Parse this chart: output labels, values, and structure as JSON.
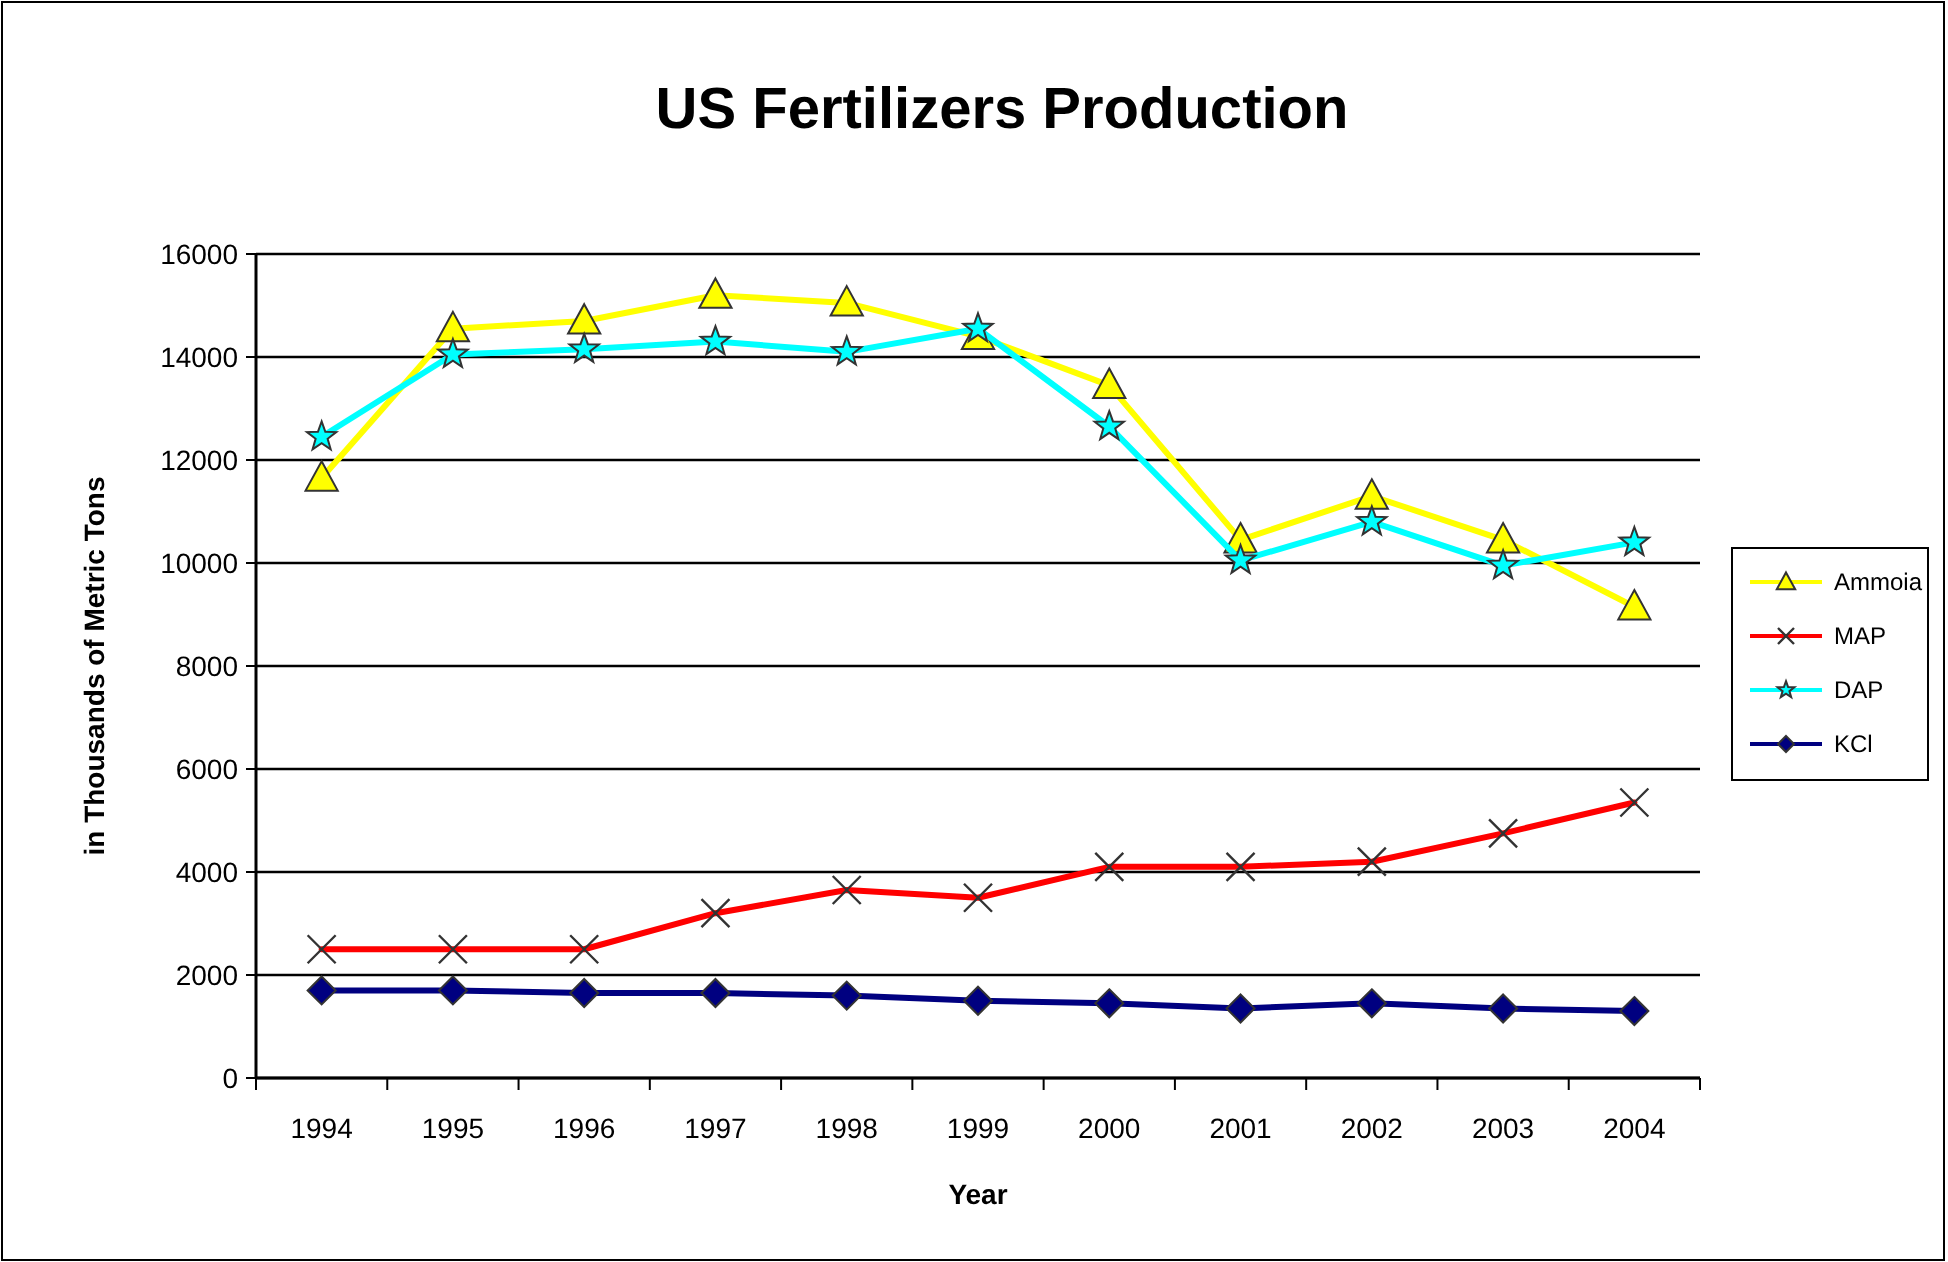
{
  "chart_data": {
    "type": "line",
    "title": "US Fertilizers Production",
    "xlabel": "Year",
    "ylabel": "in Thousands of Metric Tons",
    "categories": [
      "1994",
      "1995",
      "1996",
      "1997",
      "1998",
      "1999",
      "2000",
      "2001",
      "2002",
      "2003",
      "2004"
    ],
    "series": [
      {
        "name": "Ammoia",
        "color": "#ffff00",
        "marker": "triangle",
        "values": [
          11650,
          14550,
          14700,
          15200,
          15050,
          14400,
          13450,
          10450,
          11300,
          10450,
          9150
        ]
      },
      {
        "name": "MAP",
        "color": "#ff0000",
        "marker": "cross",
        "values": [
          2500,
          2500,
          2500,
          3200,
          3650,
          3500,
          4100,
          4100,
          4200,
          4750,
          5350
        ]
      },
      {
        "name": "DAP",
        "color": "#00ffff",
        "marker": "star",
        "values": [
          12450,
          14050,
          14150,
          14300,
          14100,
          14550,
          12650,
          10050,
          10800,
          9950,
          10400
        ]
      },
      {
        "name": "KCl",
        "color": "#000080",
        "marker": "diamond",
        "values": [
          1700,
          1700,
          1650,
          1650,
          1600,
          1500,
          1450,
          1350,
          1450,
          1350,
          1300
        ]
      }
    ],
    "ylim": [
      0,
      16000
    ],
    "yticks": [
      0,
      2000,
      4000,
      6000,
      8000,
      10000,
      12000,
      14000,
      16000
    ],
    "grid": "y",
    "legend": "right"
  }
}
